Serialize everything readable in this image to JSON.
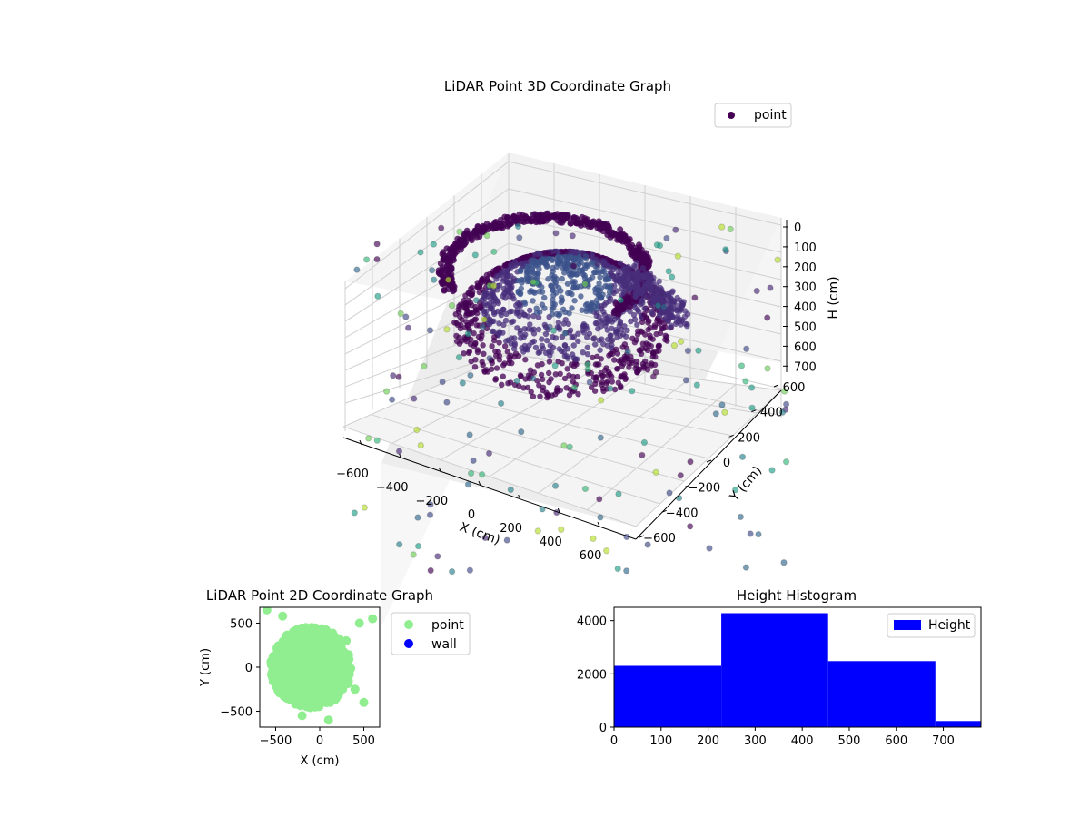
{
  "chart_data": [
    {
      "type": "scatter",
      "projection": "3d",
      "title": "LiDAR Point 3D Coordinate Graph",
      "xlabel": "X (cm)",
      "ylabel": "Y (cm)",
      "zlabel": "H (cm)",
      "x_ticks": [
        "−600",
        "−400",
        "−200",
        "0",
        "200",
        "400",
        "600"
      ],
      "y_ticks": [
        "−600",
        "−400",
        "−200",
        "0",
        "200",
        "400",
        "600"
      ],
      "z_ticks": [
        "0",
        "100",
        "200",
        "300",
        "400",
        "500",
        "600",
        "700"
      ],
      "xlim": [
        -700,
        700
      ],
      "ylim": [
        -700,
        700
      ],
      "zlim": [
        0,
        780
      ],
      "z_inverted": true,
      "colormap": "viridis",
      "legend": {
        "entries": [
          "point"
        ],
        "position": "upper-right"
      },
      "series": [
        {
          "name": "point",
          "description_shape": "dense bowl-shaped cloud of points near the origin with sparse outliers",
          "sample_points": [
            {
              "x": -650,
              "y": -600,
              "z": 420
            },
            {
              "x": -500,
              "y": -500,
              "z": 520
            },
            {
              "x": -380,
              "y": -300,
              "z": 600
            },
            {
              "x": -200,
              "y": 300,
              "z": 180
            },
            {
              "x": 0,
              "y": 0,
              "z": 600
            },
            {
              "x": 200,
              "y": -200,
              "z": 520
            },
            {
              "x": 400,
              "y": 500,
              "z": 150
            },
            {
              "x": 600,
              "y": 600,
              "z": 120
            },
            {
              "x": 650,
              "y": -600,
              "z": 650
            },
            {
              "x": 500,
              "y": 300,
              "z": 300
            }
          ]
        }
      ]
    },
    {
      "type": "scatter",
      "title": "LiDAR Point 2D Coordinate Graph",
      "xlabel": "X (cm)",
      "ylabel": "Y (cm)",
      "x_ticks": [
        -500,
        0,
        500
      ],
      "y_ticks": [
        500,
        0,
        -500
      ],
      "xlim": [
        -680,
        680
      ],
      "ylim": [
        -680,
        680
      ],
      "legend": {
        "entries": [
          "point",
          "wall"
        ],
        "position": "outside-right"
      },
      "series": [
        {
          "name": "point",
          "color": "#90ee90",
          "description_shape": "dense circular blob centred near (-100, 0) with radius about 450",
          "sample_points": [
            {
              "x": -600,
              "y": 650
            },
            {
              "x": -420,
              "y": 580
            },
            {
              "x": -300,
              "y": 400
            },
            {
              "x": -100,
              "y": 0
            },
            {
              "x": 0,
              "y": -300
            },
            {
              "x": 300,
              "y": 300
            },
            {
              "x": 450,
              "y": 500
            },
            {
              "x": 600,
              "y": 550
            },
            {
              "x": 400,
              "y": -250
            },
            {
              "x": 500,
              "y": -400
            },
            {
              "x": 100,
              "y": -600
            },
            {
              "x": -200,
              "y": -550
            }
          ]
        },
        {
          "name": "wall",
          "color": "#0000ff",
          "sample_points": []
        }
      ]
    },
    {
      "type": "bar",
      "title": "Height Histogram",
      "xlabel": "",
      "ylabel": "",
      "x_ticks": [
        0,
        100,
        200,
        300,
        400,
        500,
        600,
        700
      ],
      "y_ticks": [
        0,
        2000,
        4000
      ],
      "xlim": [
        0,
        780
      ],
      "ylim": [
        0,
        4500
      ],
      "legend": {
        "entries": [
          "Height"
        ],
        "position": "upper-right"
      },
      "bins": [
        {
          "start": 0,
          "end": 228,
          "count": 2300
        },
        {
          "start": 228,
          "end": 455,
          "count": 4280
        },
        {
          "start": 455,
          "end": 683,
          "count": 2480
        },
        {
          "start": 683,
          "end": 780,
          "count": 230
        }
      ],
      "series": [
        {
          "name": "Height",
          "color": "#0000ff"
        }
      ]
    }
  ]
}
